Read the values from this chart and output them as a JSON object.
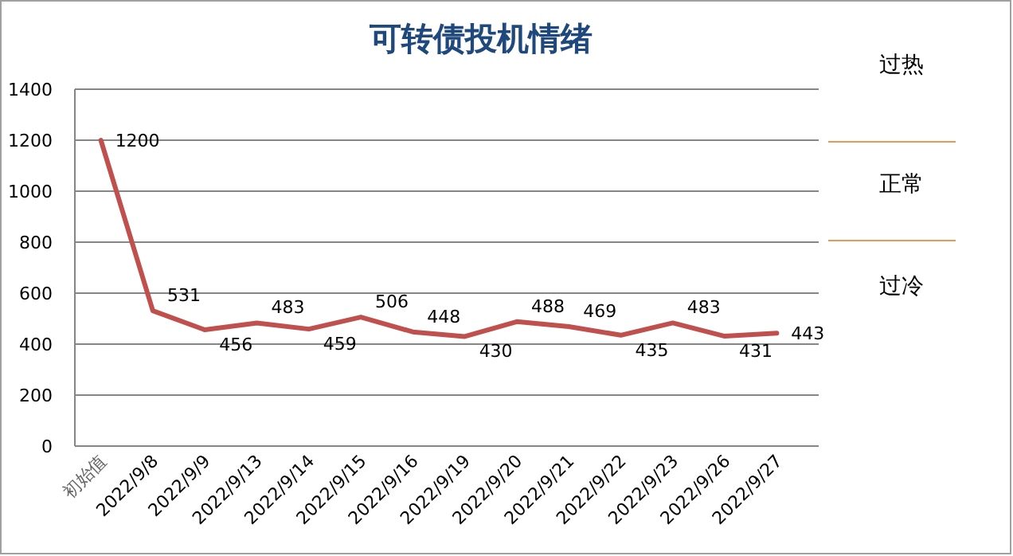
{
  "chart_data": {
    "type": "line",
    "title": "可转债投机情绪",
    "categories": [
      "初始值",
      "2022/9/8",
      "2022/9/9",
      "2022/9/13",
      "2022/9/14",
      "2022/9/15",
      "2022/9/16",
      "2022/9/19",
      "2022/9/20",
      "2022/9/21",
      "2022/9/22",
      "2022/9/23",
      "2022/9/26",
      "2022/9/27"
    ],
    "series": [
      {
        "color": "#c0504d",
        "values": [
          1200,
          531,
          456,
          483,
          459,
          506,
          448,
          430,
          488,
          469,
          435,
          483,
          431,
          443
        ]
      }
    ],
    "ylim": [
      0,
      1400
    ],
    "yticks": [
      0,
      200,
      400,
      600,
      800,
      1000,
      1200,
      1400
    ],
    "grid": "y",
    "data_labels": true,
    "marker": "none",
    "line_style": "solid",
    "annotations": [
      "过热",
      "正常",
      "过冷"
    ]
  }
}
